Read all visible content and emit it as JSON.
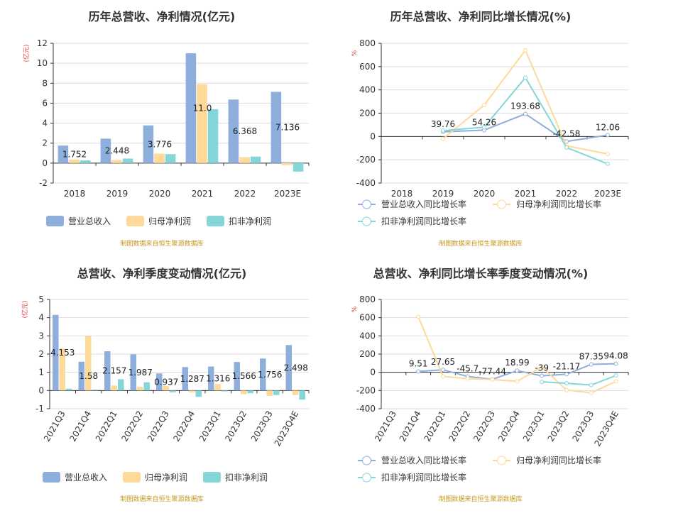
{
  "colors": {
    "revenue": "#8eaedc",
    "net_profit": "#fdd99a",
    "deducted_profit": "#84d6d9"
  },
  "source_note": "制图数据来自恒生聚源数据库",
  "chart_data": [
    {
      "type": "bar",
      "title": "历年总营收、净利情况(亿元)",
      "ylabel": "(亿元)",
      "ylim": [
        -2,
        12
      ],
      "yticks": [
        -2,
        0,
        2,
        4,
        6,
        8,
        10,
        12
      ],
      "categories": [
        "2018",
        "2019",
        "2020",
        "2021",
        "2022",
        "2023E"
      ],
      "series": [
        {
          "name": "营业总收入",
          "values": [
            1.752,
            2.448,
            3.776,
            11.0,
            6.368,
            7.136
          ]
        },
        {
          "name": "归母净利润",
          "values": [
            0.35,
            0.3,
            0.95,
            7.9,
            0.6,
            -0.2
          ]
        },
        {
          "name": "扣非净利润",
          "values": [
            0.28,
            0.45,
            0.9,
            5.4,
            0.65,
            -0.85
          ]
        }
      ],
      "data_labels": [
        "1.752",
        "2.448",
        "3.776",
        "11.0",
        "6.368",
        "7.136"
      ],
      "legend": "bottom"
    },
    {
      "type": "line",
      "title": "历年总营收、净利同比增长情况(%)",
      "ylabel": "%",
      "ylim": [
        -400,
        800
      ],
      "yticks": [
        -400,
        -200,
        0,
        200,
        400,
        600,
        800
      ],
      "categories": [
        "2018",
        "2019",
        "2020",
        "2021",
        "2022",
        "2023E"
      ],
      "series": [
        {
          "name": "营业总收入同比增长率",
          "values": [
            null,
            39.76,
            54.26,
            193.68,
            -42.58,
            12.06
          ]
        },
        {
          "name": "归母净利润同比增长率",
          "values": [
            null,
            -20,
            270,
            740,
            -80,
            -150
          ]
        },
        {
          "name": "扣非净利润同比增长率",
          "values": [
            null,
            50,
            80,
            505,
            -95,
            -235
          ]
        }
      ],
      "data_labels": [
        "",
        "39.76",
        "54.26",
        "193.68",
        "-42.58",
        "12.06"
      ],
      "legend": "bottom"
    },
    {
      "type": "bar",
      "title": "总营收、净利季度变动情况(亿元)",
      "ylabel": "(亿元)",
      "ylim": [
        -1,
        5
      ],
      "yticks": [
        -1,
        0,
        1,
        2,
        3,
        4,
        5
      ],
      "categories": [
        "2021Q3",
        "2021Q4",
        "2022Q1",
        "2022Q2",
        "2022Q3",
        "2022Q4",
        "2023Q1",
        "2023Q2",
        "2023Q3",
        "2023Q4E"
      ],
      "series": [
        {
          "name": "营业总收入",
          "values": [
            4.153,
            1.58,
            2.157,
            1.987,
            0.937,
            1.287,
            1.316,
            1.566,
            1.756,
            2.498
          ]
        },
        {
          "name": "归母净利润",
          "values": [
            2.3,
            3.0,
            0.27,
            0.2,
            0.25,
            -0.1,
            0.35,
            -0.2,
            -0.3,
            -0.25
          ]
        },
        {
          "name": "扣非净利润",
          "values": [
            0.1,
            0.05,
            0.62,
            0.45,
            -0.1,
            -0.35,
            -0.05,
            -0.15,
            -0.25,
            -0.5
          ]
        }
      ],
      "data_labels": [
        "4.153",
        "1.58",
        "2.157",
        "1.987",
        "0.937",
        "1.287",
        "1.316",
        "1.566",
        "1.756",
        "2.498"
      ],
      "legend": "bottom"
    },
    {
      "type": "line",
      "title": "总营收、净利同比增长率季度变动情况(%)",
      "ylabel": "%",
      "ylim": [
        -400,
        800
      ],
      "yticks": [
        -400,
        -200,
        0,
        200,
        400,
        600,
        800
      ],
      "categories": [
        "2021Q3",
        "2021Q4",
        "2022Q1",
        "2022Q2",
        "2022Q3",
        "2022Q4",
        "2023Q1",
        "2023Q2",
        "2023Q3",
        "2023Q4E"
      ],
      "series": [
        {
          "name": "营业总收入同比增长率",
          "values": [
            null,
            9.51,
            27.65,
            -45.7,
            -77.44,
            18.99,
            -39,
            -21.17,
            87.35,
            94.08
          ]
        },
        {
          "name": "归母净利润同比增长率",
          "values": [
            null,
            610,
            -45,
            -70,
            -80,
            -100,
            60,
            -195,
            -225,
            -100
          ]
        },
        {
          "name": "扣非净利润同比增长率",
          "values": [
            null,
            null,
            null,
            null,
            null,
            null,
            -105,
            -120,
            -140,
            -35
          ]
        }
      ],
      "data_labels": [
        "",
        "9.51",
        "27.65",
        "-45.7",
        "-77.44",
        "18.99",
        "-39",
        "-21.17",
        "87.35",
        "94.08"
      ],
      "legend": "bottom"
    }
  ]
}
